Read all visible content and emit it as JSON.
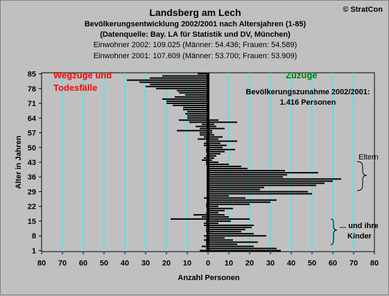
{
  "header": {
    "copyright": "© StratCon",
    "title": "Landsberg am Lech",
    "subtitle1": "Bevölkerungsentwicklung 2002/2001 nach Altersjahren (1-85)",
    "subtitle2": "(Datenquelle: Bay. LA für Statistik und DV, München)",
    "subtitle3": "Einwohner 2002: 109.025  (Männer: 54.436; Frauen: 54.589)",
    "subtitle4": "Einwohner 2001: 107.609  (Männer: 53.700; Frauen: 53.909)"
  },
  "colors": {
    "plot_bg": "#c0c0c0",
    "grid": "#00ffff",
    "bar": "#000000",
    "left_label": "#ff0000",
    "right_label": "#008000"
  },
  "chart_data": {
    "type": "bar",
    "orientation": "horizontal",
    "xlabel": "Anzahl Personen",
    "ylabel": "Alter in Jahren",
    "xlim": [
      -80,
      80
    ],
    "ylim": [
      1,
      85
    ],
    "x_ticks": [
      "80",
      "70",
      "60",
      "50",
      "40",
      "30",
      "20",
      "10",
      "0",
      "10",
      "20",
      "30",
      "40",
      "50",
      "60",
      "70",
      "80"
    ],
    "y_ticks": [
      1,
      8,
      15,
      22,
      29,
      36,
      43,
      50,
      57,
      64,
      71,
      78,
      85
    ],
    "grid": true,
    "annotations": {
      "left": [
        "Wegzüge und",
        "Todesfälle"
      ],
      "right": "Zuzüge",
      "summary": [
        "Bevölkerungszunahme 2002/2001:",
        "1.416 Personen"
      ],
      "eltern": "Eltern",
      "kinder": [
        "... und ihre",
        "Kinder"
      ]
    },
    "series": [
      {
        "name": "Wegzüge und Todesfälle",
        "ages": [
          85,
          84,
          83,
          82,
          81,
          80,
          79,
          78,
          77,
          76,
          75,
          74,
          73,
          72,
          71,
          70,
          69,
          68,
          67,
          66,
          65,
          64,
          63,
          62,
          61,
          60,
          59,
          58,
          57,
          56,
          55,
          54,
          53,
          52,
          51,
          50,
          49,
          48,
          47,
          46,
          45,
          44,
          43,
          42,
          41,
          40,
          39,
          38,
          37,
          36,
          35,
          34,
          33,
          32,
          31,
          30,
          29,
          28,
          27,
          26,
          25,
          24,
          23,
          22,
          21,
          20,
          19,
          18,
          17,
          16,
          15,
          14,
          13,
          12,
          11,
          10,
          9,
          8,
          7,
          6,
          5,
          4,
          3,
          2,
          1
        ],
        "values": [
          -5,
          -22,
          -28,
          -39,
          -33,
          -28,
          -30,
          -25,
          -15,
          -14,
          -11,
          -16,
          -22,
          -20,
          -20,
          -17,
          -12,
          -12,
          -10,
          -11,
          -10,
          -10,
          -14,
          -9,
          -3,
          -6,
          -4,
          -15,
          -4,
          -4,
          -2,
          -5,
          -1,
          -2,
          -2,
          -1,
          -1,
          -1,
          0,
          -1,
          -2,
          -3,
          -1,
          -1,
          0,
          0,
          0,
          0,
          0,
          0,
          0,
          0,
          0,
          0,
          0,
          0,
          0,
          0,
          0,
          -2,
          0,
          0,
          -1,
          -1,
          0,
          0,
          -1,
          -7,
          -3,
          -18,
          -1,
          -2,
          -2,
          -1,
          -1,
          -1,
          0,
          -2,
          -1,
          -2,
          -1,
          -1,
          -3,
          -1,
          -4
        ]
      },
      {
        "name": "Zuzüge",
        "ages": [
          85,
          84,
          83,
          82,
          81,
          80,
          79,
          78,
          77,
          76,
          75,
          74,
          73,
          72,
          71,
          70,
          69,
          68,
          67,
          66,
          65,
          64,
          63,
          62,
          61,
          60,
          59,
          58,
          57,
          56,
          55,
          54,
          53,
          52,
          51,
          50,
          49,
          48,
          47,
          46,
          45,
          44,
          43,
          42,
          41,
          40,
          39,
          38,
          37,
          36,
          35,
          34,
          33,
          32,
          31,
          30,
          29,
          28,
          27,
          26,
          25,
          24,
          23,
          22,
          21,
          20,
          19,
          18,
          17,
          16,
          15,
          14,
          13,
          12,
          11,
          10,
          9,
          8,
          7,
          6,
          5,
          4,
          3,
          2,
          1
        ],
        "values": [
          0,
          0,
          0,
          0,
          0,
          0,
          0,
          0,
          0,
          0,
          0,
          0,
          0,
          0,
          0,
          0,
          0,
          0,
          0,
          0,
          0,
          0,
          5,
          14,
          3,
          4,
          8,
          2,
          2,
          3,
          7,
          5,
          14,
          6,
          9,
          7,
          13,
          8,
          6,
          4,
          3,
          2,
          5,
          10,
          16,
          19,
          37,
          53,
          38,
          36,
          64,
          60,
          56,
          52,
          27,
          25,
          48,
          50,
          10,
          18,
          33,
          30,
          20,
          5,
          12,
          8,
          5,
          8,
          10,
          20,
          11,
          5,
          22,
          21,
          18,
          16,
          22,
          28,
          8,
          12,
          24,
          14,
          22,
          33,
          35
        ]
      }
    ]
  }
}
